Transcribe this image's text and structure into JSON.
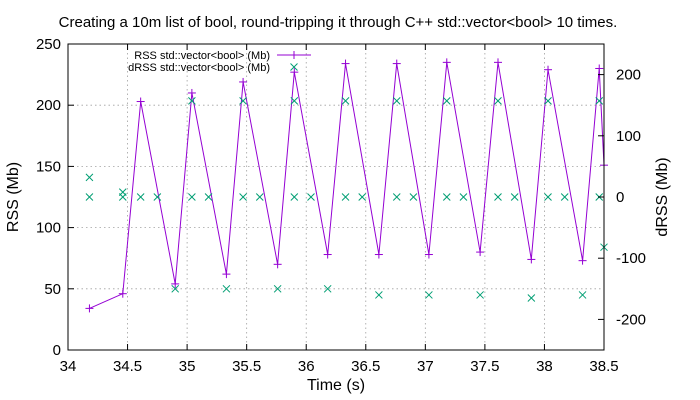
{
  "chart_data": {
    "type": "line",
    "title": "Creating a 10m list of bool, round-tripping it through C++ std::vector<bool> 10 times.",
    "xlabel": "Time (s)",
    "ylabel": "RSS (Mb)",
    "y2label": "dRSS (Mb)",
    "xlim": [
      34,
      38.5
    ],
    "ylim": [
      0,
      250
    ],
    "y2lim": [
      -250,
      250
    ],
    "xticks": [
      "34",
      "34.5",
      "35",
      "35.5",
      "36",
      "36.5",
      "37",
      "37.5",
      "38",
      "38.5"
    ],
    "yticks": [
      "0",
      "50",
      "100",
      "150",
      "200",
      "250"
    ],
    "y2ticks": [
      "-200",
      "-100",
      "0",
      "100",
      "200"
    ],
    "grid": true,
    "legend_position": "top-center",
    "series": [
      {
        "name": "RSS std::vector<bool> (Mb)",
        "axis": "left",
        "style": "lines+points",
        "color": "#9400d3",
        "marker": "plus",
        "x": [
          34.18,
          34.46,
          34.61,
          34.9,
          35.04,
          35.33,
          35.47,
          35.76,
          35.9,
          36.18,
          36.33,
          36.61,
          36.76,
          37.03,
          37.18,
          37.46,
          37.61,
          37.89,
          38.03,
          38.32,
          38.46,
          38.5
        ],
        "y": [
          34,
          46,
          203,
          54,
          210,
          62,
          219,
          70,
          227,
          78,
          234,
          78,
          234,
          78,
          235,
          80,
          235,
          74,
          229,
          73,
          230,
          151
        ]
      },
      {
        "name": "dRSS std::vector<bool> (Mb)",
        "axis": "right",
        "style": "points",
        "color": "#009e73",
        "marker": "cross",
        "x": [
          34.18,
          34.18,
          34.46,
          34.46,
          34.61,
          34.75,
          34.9,
          35.04,
          35.04,
          35.18,
          35.33,
          35.47,
          35.47,
          35.61,
          35.76,
          35.9,
          35.9,
          36.04,
          36.18,
          36.33,
          36.33,
          36.47,
          36.61,
          36.76,
          36.76,
          36.9,
          37.03,
          37.18,
          37.18,
          37.32,
          37.46,
          37.61,
          37.61,
          37.75,
          37.89,
          38.03,
          38.03,
          38.17,
          38.32,
          38.46,
          38.46,
          38.5
        ],
        "y": [
          32,
          0,
          8,
          0,
          0,
          0,
          -150,
          0,
          157,
          0,
          -150,
          0,
          157,
          0,
          -150,
          0,
          157,
          0,
          -150,
          0,
          157,
          0,
          -160,
          0,
          157,
          0,
          -160,
          0,
          157,
          0,
          -160,
          0,
          157,
          0,
          -165,
          0,
          157,
          0,
          -160,
          0,
          157,
          -82
        ]
      }
    ]
  }
}
